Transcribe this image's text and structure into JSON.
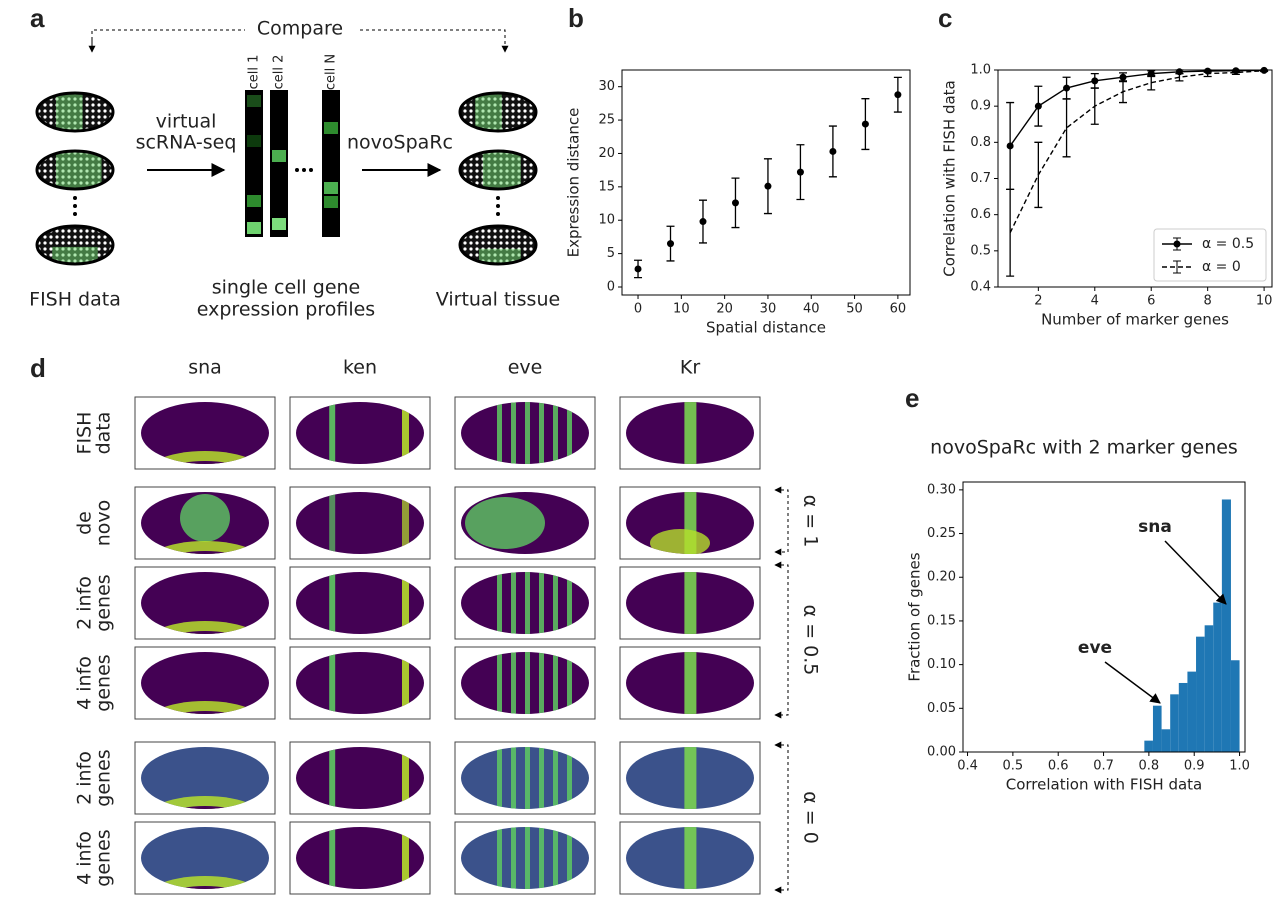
{
  "panel_labels": [
    "a",
    "b",
    "c",
    "d",
    "e"
  ],
  "panel_a": {
    "compare": "Compare",
    "left_step": [
      "virtual",
      "scRNA-seq"
    ],
    "right_step": "novoSpaRc",
    "cells": [
      "cell 1",
      "cell 2",
      "cell N"
    ],
    "captions": {
      "fish": "FISH data",
      "profiles": [
        "single cell gene",
        "expression profiles"
      ],
      "tissue": "Virtual tissue"
    }
  },
  "panel_d": {
    "genes": [
      "sna",
      "ken",
      "eve",
      "Kr"
    ],
    "rows": [
      [
        "FISH",
        "data"
      ],
      [
        "de",
        "novo"
      ],
      [
        "2 info",
        "genes"
      ],
      [
        "4 info",
        "genes"
      ],
      [
        "2 info",
        "genes"
      ],
      [
        "4 info",
        "genes"
      ]
    ],
    "alphas": [
      "α = 1",
      "α = 0.5",
      "α = 0"
    ]
  },
  "chart_data": [
    {
      "type": "scatter",
      "xlabel": "Spatial distance",
      "ylabel": "Expression distance",
      "x": [
        0,
        7.5,
        15,
        22.5,
        30,
        37.5,
        45,
        52.5,
        60
      ],
      "values": [
        2.7,
        6.5,
        9.8,
        12.6,
        15.1,
        17.2,
        20.3,
        24.4,
        28.8
      ],
      "errors": [
        1.3,
        2.6,
        3.2,
        3.7,
        4.1,
        4.1,
        3.8,
        3.8,
        2.6
      ],
      "color": "#000000",
      "xlim": [
        -3.7,
        62.8
      ],
      "ylim": [
        -1.2,
        32.5
      ],
      "xticks": [
        0,
        10,
        20,
        30,
        40,
        50,
        60
      ],
      "yticks": [
        0,
        5,
        10,
        15,
        20,
        25,
        30
      ]
    },
    {
      "type": "line",
      "xlabel": "Number of marker genes",
      "ylabel": "Correlation with FISH data",
      "x": [
        1,
        2,
        3,
        4,
        5,
        6,
        7,
        8,
        9,
        10
      ],
      "series": [
        {
          "name": "α = 0.5",
          "color": "#000000",
          "line_style": "solid",
          "values": [
            0.79,
            0.9,
            0.95,
            0.97,
            0.98,
            0.99,
            0.995,
            0.997,
            0.998,
            0.999
          ],
          "errors": [
            0.12,
            0.055,
            0.03,
            0.02,
            0.012,
            0.008,
            0.005,
            0.003,
            0.002,
            0.001
          ]
        },
        {
          "name": "α = 0",
          "color": "#000000",
          "line_style": "dashed",
          "values": [
            0.55,
            0.71,
            0.84,
            0.9,
            0.94,
            0.965,
            0.98,
            0.99,
            0.993,
            0.998
          ],
          "errors": [
            0.12,
            0.09,
            0.08,
            0.05,
            0.03,
            0.02,
            0.01,
            0.008,
            0.005,
            0.002
          ]
        }
      ],
      "legend": "lower right",
      "xlim": [
        0.57,
        10.28
      ],
      "ylim": [
        0.4,
        1.0
      ],
      "xticks": [
        2,
        4,
        6,
        8,
        10
      ],
      "yticks": [
        0.4,
        0.5,
        0.6,
        0.7,
        0.8,
        0.9,
        {
          "value": 1,
          "label": "1.0"
        }
      ]
    },
    {
      "type": "histogram",
      "title": "novoSpaRc with 2 marker genes",
      "xlabel": "Correlation with FISH data",
      "ylabel": "Fraction of genes",
      "bins": [
        0.79,
        0.809,
        0.828,
        0.847,
        0.866,
        0.885,
        0.904,
        0.923,
        0.942,
        0.961,
        0.981,
        1.0
      ],
      "values": [
        0.013,
        0.053,
        0.026,
        0.066,
        0.079,
        0.092,
        0.132,
        0.145,
        0.171,
        0.289,
        0.105
      ],
      "color": "#1f77b4",
      "annotations": [
        "sna",
        "eve"
      ],
      "xlim": [
        0.39,
        1.012
      ],
      "ylim": [
        0,
        0.309
      ],
      "xticks": [
        0.4,
        0.5,
        0.6,
        0.7,
        0.8,
        0.9,
        {
          "value": 1,
          "label": "1.0"
        }
      ],
      "yticks": [
        {
          "value": 0,
          "label": "0.00"
        },
        {
          "value": 0.05,
          "label": "0.05"
        },
        {
          "value": 0.1,
          "label": "0.10"
        },
        {
          "value": 0.15,
          "label": "0.15"
        },
        {
          "value": 0.2,
          "label": "0.20"
        },
        {
          "value": 0.25,
          "label": "0.25"
        },
        {
          "value": 0.3,
          "label": "0.30"
        }
      ]
    }
  ]
}
